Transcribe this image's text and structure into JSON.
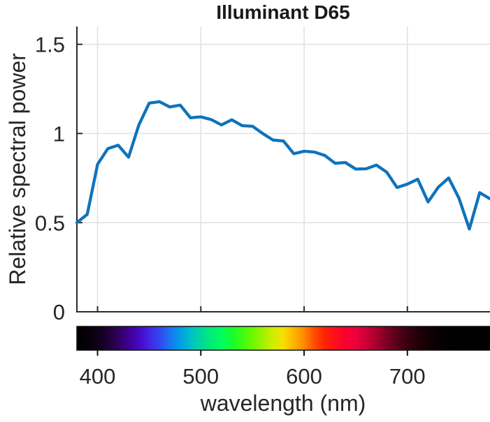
{
  "chart_data": {
    "type": "line",
    "title": "Illuminant D65",
    "xlabel": "wavelength (nm)",
    "ylabel": "Relative spectral power",
    "x": [
      380,
      390,
      400,
      410,
      420,
      430,
      440,
      450,
      460,
      470,
      480,
      490,
      500,
      510,
      520,
      530,
      540,
      550,
      560,
      570,
      580,
      590,
      600,
      610,
      620,
      630,
      640,
      650,
      660,
      670,
      680,
      690,
      700,
      710,
      720,
      730,
      740,
      750,
      760,
      770,
      780
    ],
    "y": [
      0.4998,
      0.5465,
      0.8275,
      0.9149,
      0.9343,
      0.8668,
      1.0486,
      1.1701,
      1.1781,
      1.1486,
      1.1592,
      1.0881,
      1.0935,
      1.078,
      1.0479,
      1.0769,
      1.0441,
      1.0405,
      1.0,
      0.9633,
      0.9579,
      0.8869,
      0.9001,
      0.896,
      0.877,
      0.8329,
      0.837,
      0.8003,
      0.8021,
      0.8228,
      0.7828,
      0.6972,
      0.7161,
      0.7435,
      0.616,
      0.6989,
      0.7509,
      0.6359,
      0.4642,
      0.6681,
      0.6338
    ],
    "xlim": [
      380,
      780
    ],
    "ylim": [
      0,
      1.6
    ],
    "xticks": [
      400,
      500,
      600,
      700
    ],
    "xtick_labels": [
      "400",
      "500",
      "600",
      "700"
    ],
    "yticks": [
      0,
      0.5,
      1,
      1.5
    ],
    "ytick_labels": [
      "0",
      "0.5",
      "1",
      "1.5"
    ],
    "grid": true,
    "legend": false,
    "line_color": "#0e73bc"
  },
  "colorbar": {
    "ticks": [
      400,
      500,
      600,
      700
    ],
    "gradient_stops": [
      [
        380,
        "#000000"
      ],
      [
        390,
        "#050008"
      ],
      [
        400,
        "#0e0018"
      ],
      [
        410,
        "#1e0035"
      ],
      [
        420,
        "#30005c"
      ],
      [
        430,
        "#3f0090"
      ],
      [
        440,
        "#4608c4"
      ],
      [
        450,
        "#4323e4"
      ],
      [
        460,
        "#3347f0"
      ],
      [
        470,
        "#1b73f0"
      ],
      [
        480,
        "#009ee6"
      ],
      [
        490,
        "#00bfc8"
      ],
      [
        500,
        "#00d89e"
      ],
      [
        510,
        "#00ec74"
      ],
      [
        520,
        "#00fc63"
      ],
      [
        530,
        "#17fc2e"
      ],
      [
        540,
        "#3dfc14"
      ],
      [
        550,
        "#6cf800"
      ],
      [
        560,
        "#a0f000"
      ],
      [
        570,
        "#cfee00"
      ],
      [
        580,
        "#f6df00"
      ],
      [
        590,
        "#ffb400"
      ],
      [
        600,
        "#ff8a00"
      ],
      [
        610,
        "#ff4c00"
      ],
      [
        620,
        "#ff2400"
      ],
      [
        630,
        "#ff0f1d"
      ],
      [
        640,
        "#f80030"
      ],
      [
        650,
        "#ee003c"
      ],
      [
        660,
        "#cc0036"
      ],
      [
        670,
        "#a6002e"
      ],
      [
        680,
        "#7d0024"
      ],
      [
        690,
        "#560019"
      ],
      [
        700,
        "#380010"
      ],
      [
        710,
        "#220009"
      ],
      [
        720,
        "#120004"
      ],
      [
        730,
        "#080002"
      ],
      [
        740,
        "#030001"
      ],
      [
        750,
        "#010000"
      ],
      [
        760,
        "#000000"
      ],
      [
        780,
        "#000000"
      ]
    ]
  }
}
